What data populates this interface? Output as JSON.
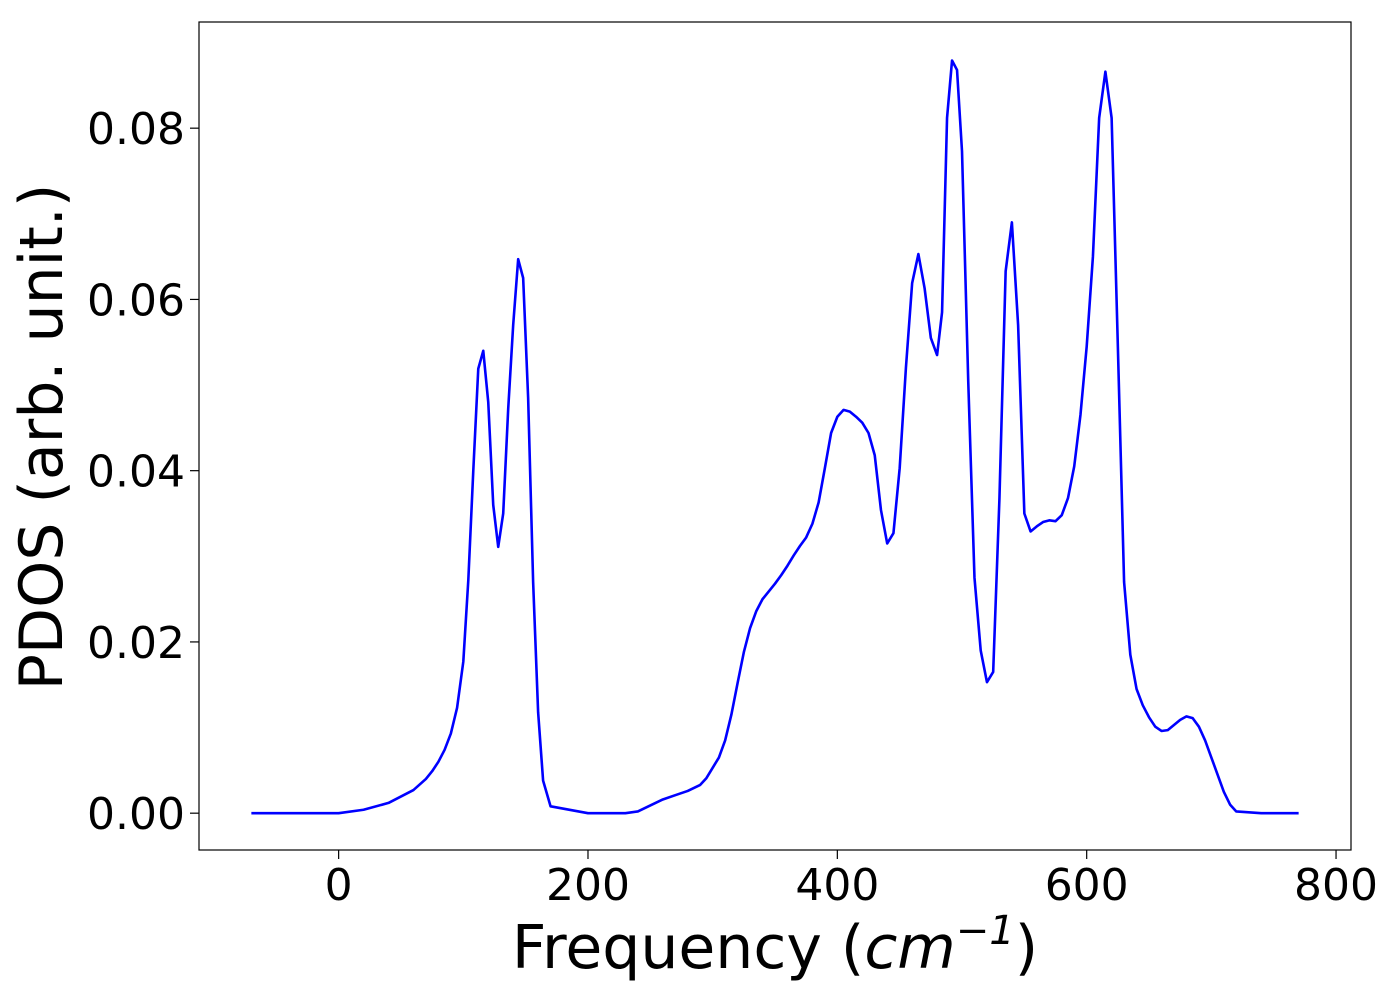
{
  "chart_data": {
    "type": "line",
    "title": "",
    "xlabel": "Frequency (cm⁻¹)",
    "xlabel_parts": {
      "text": "Frequency (",
      "unit_base": "cm",
      "unit_exp": "−1",
      "close": ")"
    },
    "ylabel": "PDOS (arb. unit.)",
    "xlim": [
      -112,
      812
    ],
    "ylim": [
      -0.0043,
      0.0924
    ],
    "xticks": [
      0,
      200,
      400,
      600,
      800
    ],
    "xtick_labels": [
      "0",
      "200",
      "400",
      "600",
      "800"
    ],
    "yticks": [
      0.0,
      0.02,
      0.04,
      0.06,
      0.08
    ],
    "ytick_labels": [
      "0.00",
      "0.02",
      "0.04",
      "0.06",
      "0.08"
    ],
    "grid": false,
    "line_color": "#0000ff",
    "series": [
      {
        "x": [
          -70,
          -40,
          0,
          20,
          40,
          60,
          70,
          75,
          80,
          85,
          90,
          95,
          100,
          104,
          108,
          112,
          116,
          120,
          124,
          128,
          132,
          136,
          140,
          144,
          148,
          152,
          156,
          160,
          164,
          170,
          200,
          230,
          240,
          250,
          260,
          270,
          280,
          290,
          295,
          300,
          305,
          310,
          315,
          320,
          325,
          330,
          335,
          340,
          345,
          350,
          355,
          360,
          365,
          370,
          375,
          380,
          385,
          390,
          395,
          400,
          405,
          410,
          415,
          420,
          425,
          430,
          435,
          440,
          445,
          450,
          455,
          460,
          465,
          470,
          475,
          480,
          484,
          488,
          492,
          496,
          500,
          505,
          510,
          515,
          520,
          525,
          530,
          535,
          540,
          545,
          550,
          555,
          560,
          565,
          570,
          575,
          580,
          585,
          590,
          595,
          600,
          605,
          610,
          615,
          620,
          625,
          630,
          635,
          640,
          645,
          650,
          655,
          660,
          665,
          670,
          675,
          680,
          685,
          690,
          695,
          700,
          705,
          710,
          715,
          720,
          740,
          770
        ],
        "y": [
          0.0,
          0.0,
          0.0,
          0.0004,
          0.0012,
          0.0027,
          0.004,
          0.0049,
          0.006,
          0.0074,
          0.0093,
          0.0123,
          0.0177,
          0.0272,
          0.04,
          0.0519,
          0.054,
          0.048,
          0.036,
          0.0311,
          0.035,
          0.0472,
          0.057,
          0.0647,
          0.0625,
          0.0485,
          0.027,
          0.0118,
          0.0038,
          0.0008,
          0.0,
          0.0,
          0.0002,
          0.0009,
          0.0016,
          0.0021,
          0.0026,
          0.0033,
          0.0041,
          0.0053,
          0.0065,
          0.0085,
          0.0115,
          0.0152,
          0.0188,
          0.0216,
          0.0236,
          0.025,
          0.0259,
          0.0268,
          0.0278,
          0.0289,
          0.0301,
          0.0312,
          0.0322,
          0.0338,
          0.0363,
          0.0403,
          0.0444,
          0.0463,
          0.0471,
          0.0469,
          0.0463,
          0.0456,
          0.0444,
          0.0418,
          0.0354,
          0.0315,
          0.0327,
          0.0403,
          0.052,
          0.0619,
          0.0653,
          0.0613,
          0.0555,
          0.0535,
          0.0585,
          0.0812,
          0.0879,
          0.0868,
          0.0773,
          0.0504,
          0.0275,
          0.019,
          0.0153,
          0.0165,
          0.0367,
          0.0633,
          0.069,
          0.057,
          0.035,
          0.0329,
          0.0335,
          0.034,
          0.0342,
          0.0341,
          0.0348,
          0.0368,
          0.0405,
          0.0465,
          0.0545,
          0.065,
          0.0812,
          0.0866,
          0.0812,
          0.0545,
          0.027,
          0.0185,
          0.0145,
          0.0126,
          0.0112,
          0.0101,
          0.0096,
          0.0097,
          0.0103,
          0.0109,
          0.0113,
          0.0111,
          0.0101,
          0.0085,
          0.0065,
          0.0045,
          0.0025,
          0.001,
          0.0002,
          0.0,
          0.0
        ]
      }
    ]
  }
}
